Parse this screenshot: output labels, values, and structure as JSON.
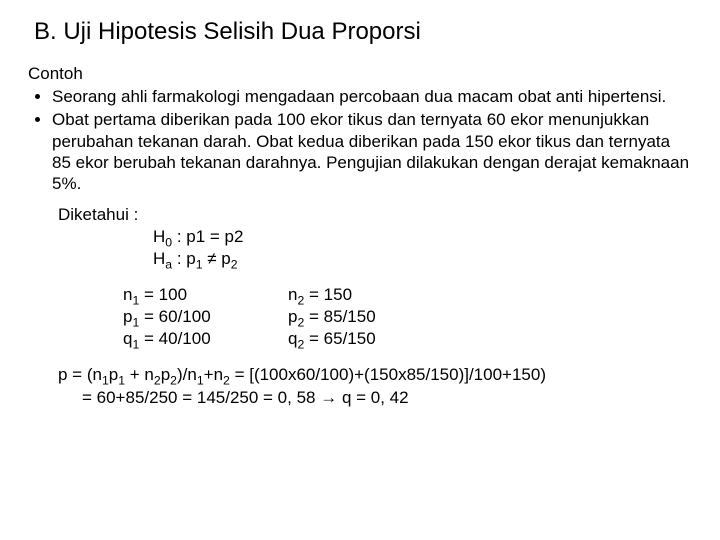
{
  "title": "B. Uji Hipotesis Selisih Dua Proporsi",
  "contoh_heading": "Contoh",
  "bullets": [
    "Seorang ahli farmakologi mengadaan percobaan dua macam obat anti hipertensi.",
    "Obat pertama diberikan pada 100 ekor tikus dan ternyata 60 ekor menunjukkan perubahan tekanan darah. Obat kedua diberikan pada 150 ekor tikus dan ternyata 85 ekor berubah tekanan darahnya. Pengujian dilakukan dengan derajat kemaknaan 5%."
  ],
  "diketahui_label": "Diketahui :",
  "hyp": {
    "h0_lhs": "H",
    "h0_sub": "0",
    "h0_sep": " :  p1 = p2",
    "ha_lhs": "H",
    "ha_sub": "a",
    "ha_sep1": " :  p",
    "ha_psub1": "1",
    "ha_ne": " ≠ p",
    "ha_psub2": "2"
  },
  "vars": {
    "n1": "n",
    "n1s": "1",
    "n1v": " = 100",
    "p1": "p",
    "p1s": "1",
    "p1v": " = 60/100",
    "q1": "q",
    "q1s": "1",
    "q1v": " = 40/100",
    "n2": "n",
    "n2s": "2",
    "n2v": " = 150",
    "p2": "p",
    "p2s": "2",
    "p2v": " = 85/150",
    "q2": "q",
    "q2s": "2",
    "q2v": " = 65/150"
  },
  "final_a": "p = (n",
  "final_b": "1",
  "final_c": "p",
  "final_d": "1",
  "final_e": " + n",
  "final_f": "2",
  "final_g": "p",
  "final_h": "2",
  "final_i": ")/n",
  "final_j": "1",
  "final_k": "+n",
  "final_l": "2",
  "final_m": " = [(100x60/100)+(150x85/150)]/100+150)",
  "final_line2": "= 60+85/250 = 145/250 = 0, 58 → q = 0, 42"
}
